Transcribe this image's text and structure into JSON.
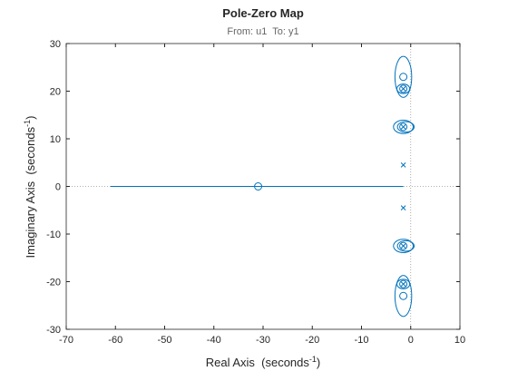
{
  "chart_data": {
    "type": "pzmap",
    "title": "Pole-Zero Map",
    "subtitle": "From: u1  To: y1",
    "xlabel": [
      "Real Axis  (seconds",
      "-1",
      ")"
    ],
    "ylabel": [
      "Imaginary Axis  (seconds",
      "-1",
      ")"
    ],
    "color": "#0072bd",
    "xlim": [
      -70,
      10
    ],
    "xticks": [
      -70,
      -60,
      -50,
      -40,
      -30,
      -20,
      -10,
      0,
      10
    ],
    "ylim": [
      -30,
      30
    ],
    "yticks": [
      -30,
      -20,
      -10,
      0,
      10,
      20,
      30
    ],
    "zeros": {
      "x": [
        -31,
        -1.5,
        -1.5,
        -1.5,
        -1.5,
        -1.5,
        -1.5
      ],
      "y": [
        0,
        23,
        20.5,
        12.5,
        -12.5,
        -20.5,
        -23
      ]
    },
    "poles": {
      "x": [
        -1.5,
        -1.5,
        -1.5,
        -1.5,
        -1.5,
        -1.5
      ],
      "y": [
        20.5,
        12.5,
        4.5,
        -4.5,
        -12.5,
        -20.5
      ]
    },
    "line": {
      "x": [
        -61,
        -1.5
      ],
      "y": [
        0,
        0
      ]
    },
    "ellipses": [
      {
        "cx": -1.5,
        "cy": 23,
        "rx": 1.7,
        "ry": 4.3
      },
      {
        "cx": -1.5,
        "cy": 20.5,
        "rx": 1.3,
        "ry": 1
      },
      {
        "cx": -1.5,
        "cy": 12.5,
        "rx": 2,
        "ry": 1.4
      },
      {
        "cx": -1,
        "cy": 12.5,
        "rx": 1.7,
        "ry": 1.1
      },
      {
        "cx": -1.5,
        "cy": -12.5,
        "rx": 2,
        "ry": 1.4
      },
      {
        "cx": -1,
        "cy": -12.5,
        "rx": 1.7,
        "ry": 1.1
      },
      {
        "cx": -1.5,
        "cy": -20.5,
        "rx": 1.3,
        "ry": 1
      },
      {
        "cx": -1.5,
        "cy": -23,
        "rx": 1.7,
        "ry": 4.3
      }
    ]
  }
}
